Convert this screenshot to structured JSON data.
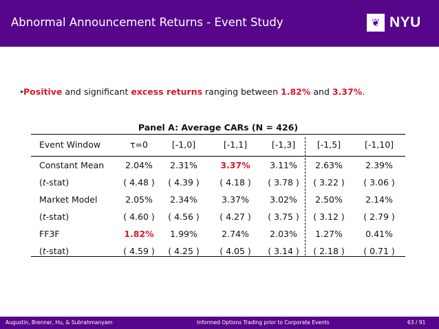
{
  "header": {
    "title": "Abnormal Announcement Returns - Event Study",
    "logo_text": "NYU",
    "logo_symbol": "❦"
  },
  "bullet": {
    "marker": "▸",
    "t1": "Positive",
    "t2": " and significant ",
    "t3": "excess returns",
    "t4": " ranging between ",
    "t5": "1.82%",
    "t6": " and ",
    "t7": "3.37%",
    "t8": "."
  },
  "table": {
    "caption": "Panel A: Average CARs (N = 426)",
    "headers": [
      "Event Window",
      "τ=0",
      "[-1,0]",
      "[-1,1]",
      "[-1,3]",
      "[-1,5]",
      "[-1,10]"
    ],
    "rows": [
      {
        "label": "Constant Mean",
        "values": [
          "2.04%",
          "2.31%",
          "3.37%",
          "3.11%",
          "2.63%",
          "2.39%"
        ]
      },
      {
        "label_pre": "(",
        "label_it": "t",
        "label_post": "-stat)",
        "values": [
          "( 4.48 )",
          "( 4.39 )",
          "( 4.18 )",
          "( 3.78 )",
          "( 3.22 )",
          "( 3.06 )"
        ]
      },
      {
        "label": "Market Model",
        "values": [
          "2.05%",
          "2.34%",
          "3.37%",
          "3.02%",
          "2.50%",
          "2.14%"
        ]
      },
      {
        "label_pre": "(",
        "label_it": "t",
        "label_post": "-stat)",
        "values": [
          "( 4.60 )",
          "( 4.56 )",
          "( 4.27 )",
          "( 3.75 )",
          "( 3.12 )",
          "( 2.79 )"
        ]
      },
      {
        "label": "FF3F",
        "values": [
          "1.82%",
          "1.99%",
          "2.74%",
          "2.03%",
          "1.27%",
          "0.41%"
        ]
      },
      {
        "label_pre": "(",
        "label_it": "t",
        "label_post": "-stat)",
        "values": [
          "( 4.59 )",
          "( 4.25 )",
          "( 4.05 )",
          "( 3.14 )",
          "( 2.18 )",
          "( 0.71 )"
        ]
      }
    ],
    "highlight_color": "#d7192a"
  },
  "footer": {
    "authors": "Augustin, Brenner, Hu, & Subrahmanyam",
    "talk_title": "Informed Options Trading prior to Corporate Events",
    "page": "63 / 91"
  },
  "colors": {
    "brand": "#57068c",
    "accent": "#d7192a"
  }
}
